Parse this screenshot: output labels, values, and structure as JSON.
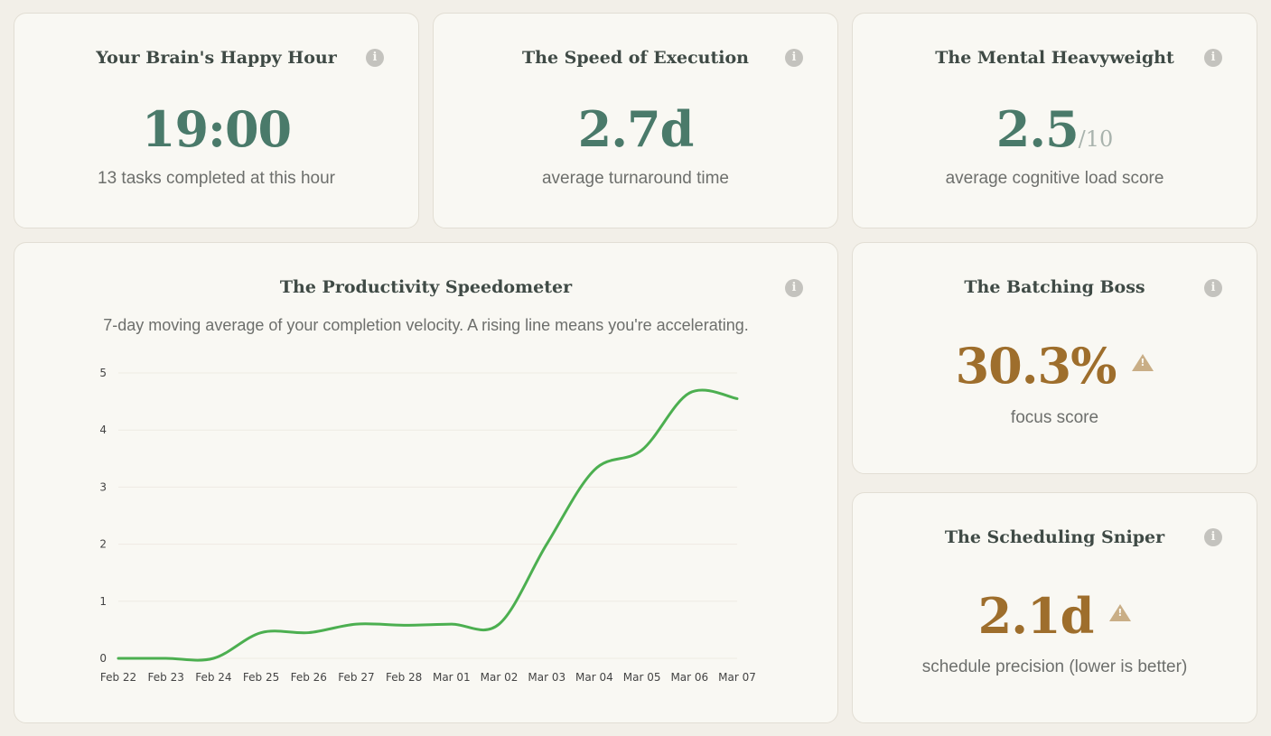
{
  "cards": {
    "happy_hour": {
      "title": "Your Brain's Happy Hour",
      "value": "19:00",
      "subtitle": "13 tasks completed at this hour",
      "icon": "info-icon"
    },
    "speed": {
      "title": "The Speed of Execution",
      "value": "2.7d",
      "subtitle": "average turnaround time",
      "icon": "info-icon"
    },
    "heavyweight": {
      "title": "The Mental Heavyweight",
      "value": "2.5",
      "denominator": "/10",
      "subtitle": "average cognitive load score",
      "icon": "info-icon"
    },
    "batching": {
      "title": "The Batching Boss",
      "value": "30.3%",
      "subtitle": "focus score",
      "icon": "warning-icon"
    },
    "sniper": {
      "title": "The Scheduling Sniper",
      "value": "2.1d",
      "subtitle": "schedule precision (lower is better)",
      "icon": "warning-icon"
    },
    "speedometer": {
      "title": "The Productivity Speedometer",
      "description": "7-day moving average of your completion velocity. A rising line means you're accelerating."
    }
  },
  "colors": {
    "accent_green": "#4a7a6a",
    "accent_gold": "#9e6e2c",
    "line": "#4caf50",
    "warning": "#c9ae86"
  },
  "chart_data": {
    "type": "line",
    "x": [
      "Feb 22",
      "Feb 23",
      "Feb 24",
      "Feb 25",
      "Feb 26",
      "Feb 27",
      "Feb 28",
      "Mar 01",
      "Mar 02",
      "Mar 03",
      "Mar 04",
      "Mar 05",
      "Mar 06",
      "Mar 07"
    ],
    "series": [
      {
        "values": [
          0,
          0,
          0,
          0.45,
          0.45,
          0.6,
          0.58,
          0.6,
          0.6,
          2.0,
          3.3,
          3.65,
          4.65,
          4.55
        ]
      }
    ],
    "y_ticks": [
      "0",
      "1",
      "2",
      "3",
      "4",
      "5"
    ],
    "ylim": [
      0,
      5
    ],
    "grid": true,
    "legend": "none"
  }
}
